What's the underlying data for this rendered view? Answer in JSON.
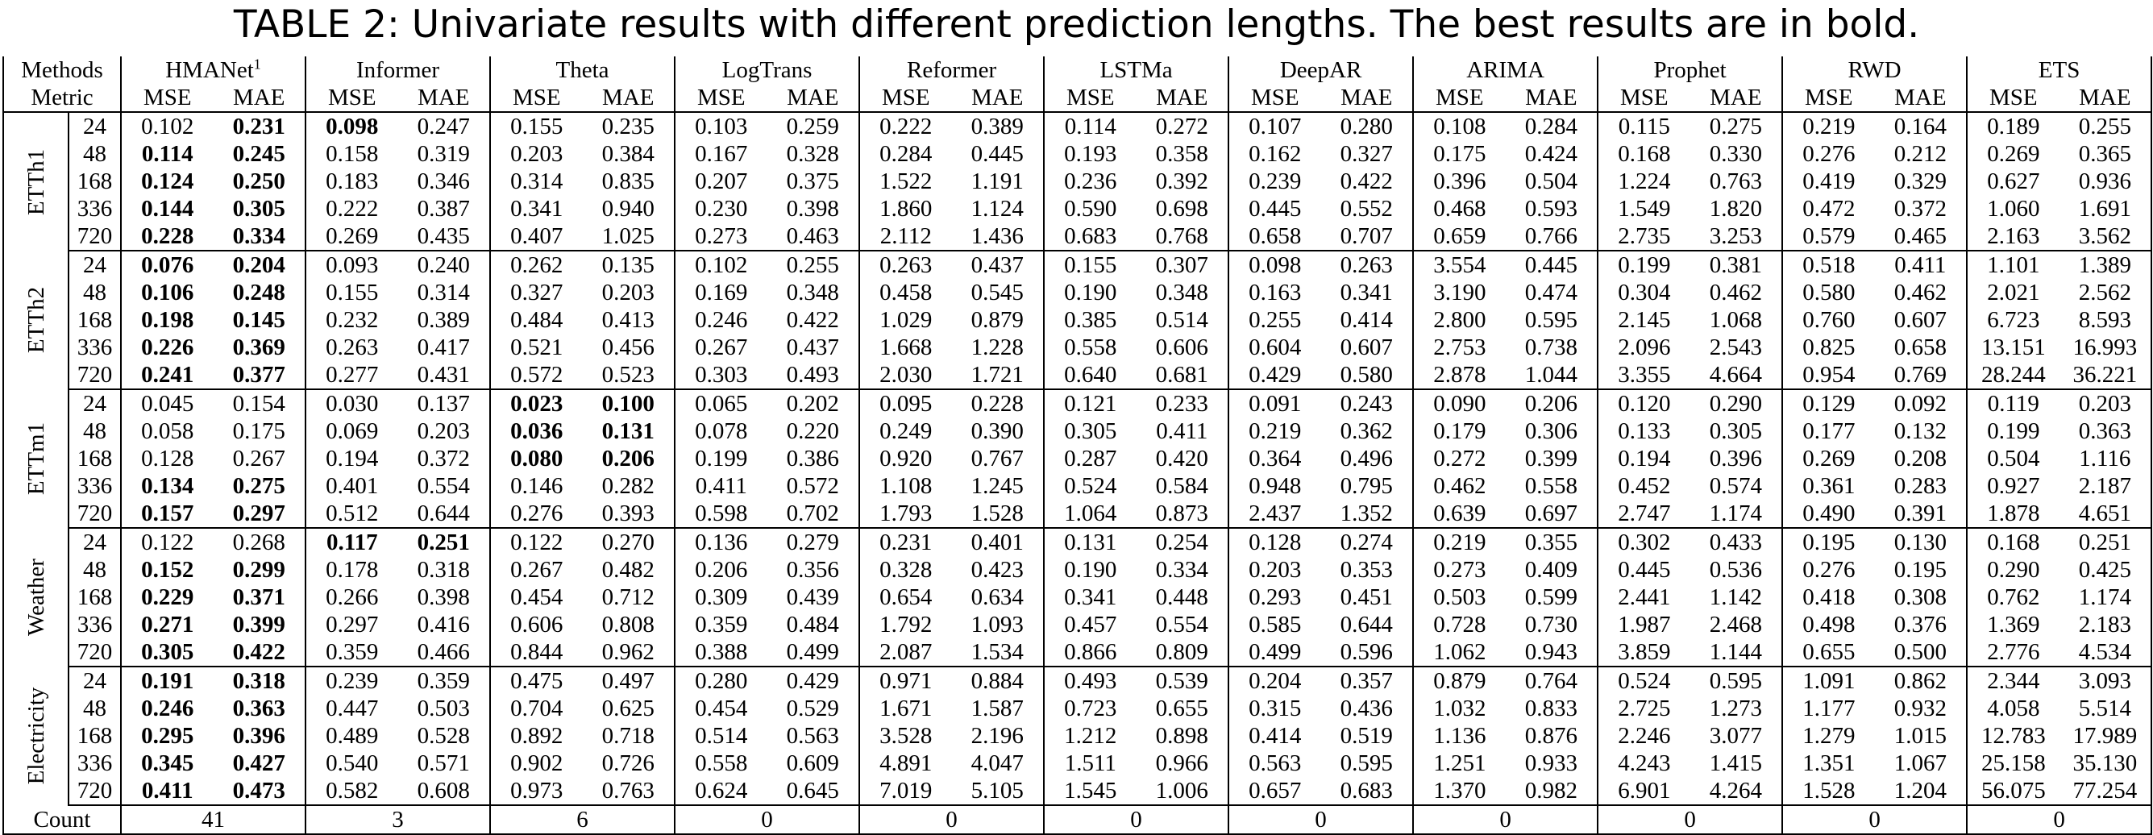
{
  "caption": "TABLE 2: Univariate results with different prediction lengths. The best results are in bold.",
  "header": {
    "methods_label": "Methods",
    "metric_label": "Metric",
    "metric_names": [
      "MSE",
      "MAE"
    ],
    "methods": [
      {
        "name": "HMANet",
        "sup": "1"
      },
      {
        "name": "Informer",
        "sup": ""
      },
      {
        "name": "Theta",
        "sup": ""
      },
      {
        "name": "LogTrans",
        "sup": ""
      },
      {
        "name": "Reformer",
        "sup": ""
      },
      {
        "name": "LSTMa",
        "sup": ""
      },
      {
        "name": "DeepAR",
        "sup": ""
      },
      {
        "name": "ARIMA",
        "sup": ""
      },
      {
        "name": "Prophet",
        "sup": ""
      },
      {
        "name": "RWD",
        "sup": ""
      },
      {
        "name": "ETS",
        "sup": ""
      }
    ]
  },
  "groups": [
    {
      "dataset": "ETTh1",
      "rows": [
        {
          "len": "24",
          "values": [
            "0.102",
            "0.231",
            "0.098",
            "0.247",
            "0.155",
            "0.235",
            "0.103",
            "0.259",
            "0.222",
            "0.389",
            "0.114",
            "0.272",
            "0.107",
            "0.280",
            "0.108",
            "0.284",
            "0.115",
            "0.275",
            "0.219",
            "0.164",
            "0.189",
            "0.255"
          ],
          "bold": [
            1,
            2
          ]
        },
        {
          "len": "48",
          "values": [
            "0.114",
            "0.245",
            "0.158",
            "0.319",
            "0.203",
            "0.384",
            "0.167",
            "0.328",
            "0.284",
            "0.445",
            "0.193",
            "0.358",
            "0.162",
            "0.327",
            "0.175",
            "0.424",
            "0.168",
            "0.330",
            "0.276",
            "0.212",
            "0.269",
            "0.365"
          ],
          "bold": [
            0,
            1
          ]
        },
        {
          "len": "168",
          "values": [
            "0.124",
            "0.250",
            "0.183",
            "0.346",
            "0.314",
            "0.835",
            "0.207",
            "0.375",
            "1.522",
            "1.191",
            "0.236",
            "0.392",
            "0.239",
            "0.422",
            "0.396",
            "0.504",
            "1.224",
            "0.763",
            "0.419",
            "0.329",
            "0.627",
            "0.936"
          ],
          "bold": [
            0,
            1
          ]
        },
        {
          "len": "336",
          "values": [
            "0.144",
            "0.305",
            "0.222",
            "0.387",
            "0.341",
            "0.940",
            "0.230",
            "0.398",
            "1.860",
            "1.124",
            "0.590",
            "0.698",
            "0.445",
            "0.552",
            "0.468",
            "0.593",
            "1.549",
            "1.820",
            "0.472",
            "0.372",
            "1.060",
            "1.691"
          ],
          "bold": [
            0,
            1
          ]
        },
        {
          "len": "720",
          "values": [
            "0.228",
            "0.334",
            "0.269",
            "0.435",
            "0.407",
            "1.025",
            "0.273",
            "0.463",
            "2.112",
            "1.436",
            "0.683",
            "0.768",
            "0.658",
            "0.707",
            "0.659",
            "0.766",
            "2.735",
            "3.253",
            "0.579",
            "0.465",
            "2.163",
            "3.562"
          ],
          "bold": [
            0,
            1
          ]
        }
      ]
    },
    {
      "dataset": "ETTh2",
      "rows": [
        {
          "len": "24",
          "values": [
            "0.076",
            "0.204",
            "0.093",
            "0.240",
            "0.262",
            "0.135",
            "0.102",
            "0.255",
            "0.263",
            "0.437",
            "0.155",
            "0.307",
            "0.098",
            "0.263",
            "3.554",
            "0.445",
            "0.199",
            "0.381",
            "0.518",
            "0.411",
            "1.101",
            "1.389"
          ],
          "bold": [
            0,
            1
          ]
        },
        {
          "len": "48",
          "values": [
            "0.106",
            "0.248",
            "0.155",
            "0.314",
            "0.327",
            "0.203",
            "0.169",
            "0.348",
            "0.458",
            "0.545",
            "0.190",
            "0.348",
            "0.163",
            "0.341",
            "3.190",
            "0.474",
            "0.304",
            "0.462",
            "0.580",
            "0.462",
            "2.021",
            "2.562"
          ],
          "bold": [
            0,
            1
          ]
        },
        {
          "len": "168",
          "values": [
            "0.198",
            "0.145",
            "0.232",
            "0.389",
            "0.484",
            "0.413",
            "0.246",
            "0.422",
            "1.029",
            "0.879",
            "0.385",
            "0.514",
            "0.255",
            "0.414",
            "2.800",
            "0.595",
            "2.145",
            "1.068",
            "0.760",
            "0.607",
            "6.723",
            "8.593"
          ],
          "bold": [
            0,
            1
          ]
        },
        {
          "len": "336",
          "values": [
            "0.226",
            "0.369",
            "0.263",
            "0.417",
            "0.521",
            "0.456",
            "0.267",
            "0.437",
            "1.668",
            "1.228",
            "0.558",
            "0.606",
            "0.604",
            "0.607",
            "2.753",
            "0.738",
            "2.096",
            "2.543",
            "0.825",
            "0.658",
            "13.151",
            "16.993"
          ],
          "bold": [
            0,
            1
          ]
        },
        {
          "len": "720",
          "values": [
            "0.241",
            "0.377",
            "0.277",
            "0.431",
            "0.572",
            "0.523",
            "0.303",
            "0.493",
            "2.030",
            "1.721",
            "0.640",
            "0.681",
            "0.429",
            "0.580",
            "2.878",
            "1.044",
            "3.355",
            "4.664",
            "0.954",
            "0.769",
            "28.244",
            "36.221"
          ],
          "bold": [
            0,
            1
          ]
        }
      ]
    },
    {
      "dataset": "ETTm1",
      "rows": [
        {
          "len": "24",
          "values": [
            "0.045",
            "0.154",
            "0.030",
            "0.137",
            "0.023",
            "0.100",
            "0.065",
            "0.202",
            "0.095",
            "0.228",
            "0.121",
            "0.233",
            "0.091",
            "0.243",
            "0.090",
            "0.206",
            "0.120",
            "0.290",
            "0.129",
            "0.092",
            "0.119",
            "0.203"
          ],
          "bold": [
            4,
            5
          ]
        },
        {
          "len": "48",
          "values": [
            "0.058",
            "0.175",
            "0.069",
            "0.203",
            "0.036",
            "0.131",
            "0.078",
            "0.220",
            "0.249",
            "0.390",
            "0.305",
            "0.411",
            "0.219",
            "0.362",
            "0.179",
            "0.306",
            "0.133",
            "0.305",
            "0.177",
            "0.132",
            "0.199",
            "0.363"
          ],
          "bold": [
            4,
            5
          ]
        },
        {
          "len": "168",
          "values": [
            "0.128",
            "0.267",
            "0.194",
            "0.372",
            "0.080",
            "0.206",
            "0.199",
            "0.386",
            "0.920",
            "0.767",
            "0.287",
            "0.420",
            "0.364",
            "0.496",
            "0.272",
            "0.399",
            "0.194",
            "0.396",
            "0.269",
            "0.208",
            "0.504",
            "1.116"
          ],
          "bold": [
            4,
            5
          ]
        },
        {
          "len": "336",
          "values": [
            "0.134",
            "0.275",
            "0.401",
            "0.554",
            "0.146",
            "0.282",
            "0.411",
            "0.572",
            "1.108",
            "1.245",
            "0.524",
            "0.584",
            "0.948",
            "0.795",
            "0.462",
            "0.558",
            "0.452",
            "0.574",
            "0.361",
            "0.283",
            "0.927",
            "2.187"
          ],
          "bold": [
            0,
            1
          ]
        },
        {
          "len": "720",
          "values": [
            "0.157",
            "0.297",
            "0.512",
            "0.644",
            "0.276",
            "0.393",
            "0.598",
            "0.702",
            "1.793",
            "1.528",
            "1.064",
            "0.873",
            "2.437",
            "1.352",
            "0.639",
            "0.697",
            "2.747",
            "1.174",
            "0.490",
            "0.391",
            "1.878",
            "4.651"
          ],
          "bold": [
            0,
            1
          ]
        }
      ]
    },
    {
      "dataset": "Weather",
      "rows": [
        {
          "len": "24",
          "values": [
            "0.122",
            "0.268",
            "0.117",
            "0.251",
            "0.122",
            "0.270",
            "0.136",
            "0.279",
            "0.231",
            "0.401",
            "0.131",
            "0.254",
            "0.128",
            "0.274",
            "0.219",
            "0.355",
            "0.302",
            "0.433",
            "0.195",
            "0.130",
            "0.168",
            "0.251"
          ],
          "bold": [
            2,
            3
          ]
        },
        {
          "len": "48",
          "values": [
            "0.152",
            "0.299",
            "0.178",
            "0.318",
            "0.267",
            "0.482",
            "0.206",
            "0.356",
            "0.328",
            "0.423",
            "0.190",
            "0.334",
            "0.203",
            "0.353",
            "0.273",
            "0.409",
            "0.445",
            "0.536",
            "0.276",
            "0.195",
            "0.290",
            "0.425"
          ],
          "bold": [
            0,
            1
          ]
        },
        {
          "len": "168",
          "values": [
            "0.229",
            "0.371",
            "0.266",
            "0.398",
            "0.454",
            "0.712",
            "0.309",
            "0.439",
            "0.654",
            "0.634",
            "0.341",
            "0.448",
            "0.293",
            "0.451",
            "0.503",
            "0.599",
            "2.441",
            "1.142",
            "0.418",
            "0.308",
            "0.762",
            "1.174"
          ],
          "bold": [
            0,
            1
          ]
        },
        {
          "len": "336",
          "values": [
            "0.271",
            "0.399",
            "0.297",
            "0.416",
            "0.606",
            "0.808",
            "0.359",
            "0.484",
            "1.792",
            "1.093",
            "0.457",
            "0.554",
            "0.585",
            "0.644",
            "0.728",
            "0.730",
            "1.987",
            "2.468",
            "0.498",
            "0.376",
            "1.369",
            "2.183"
          ],
          "bold": [
            0,
            1
          ]
        },
        {
          "len": "720",
          "values": [
            "0.305",
            "0.422",
            "0.359",
            "0.466",
            "0.844",
            "0.962",
            "0.388",
            "0.499",
            "2.087",
            "1.534",
            "0.866",
            "0.809",
            "0.499",
            "0.596",
            "1.062",
            "0.943",
            "3.859",
            "1.144",
            "0.655",
            "0.500",
            "2.776",
            "4.534"
          ],
          "bold": [
            0,
            1
          ]
        }
      ]
    },
    {
      "dataset": "Electricity",
      "rows": [
        {
          "len": "24",
          "values": [
            "0.191",
            "0.318",
            "0.239",
            "0.359",
            "0.475",
            "0.497",
            "0.280",
            "0.429",
            "0.971",
            "0.884",
            "0.493",
            "0.539",
            "0.204",
            "0.357",
            "0.879",
            "0.764",
            "0.524",
            "0.595",
            "1.091",
            "0.862",
            "2.344",
            "3.093"
          ],
          "bold": [
            0,
            1
          ]
        },
        {
          "len": "48",
          "values": [
            "0.246",
            "0.363",
            "0.447",
            "0.503",
            "0.704",
            "0.625",
            "0.454",
            "0.529",
            "1.671",
            "1.587",
            "0.723",
            "0.655",
            "0.315",
            "0.436",
            "1.032",
            "0.833",
            "2.725",
            "1.273",
            "1.177",
            "0.932",
            "4.058",
            "5.514"
          ],
          "bold": [
            0,
            1
          ]
        },
        {
          "len": "168",
          "values": [
            "0.295",
            "0.396",
            "0.489",
            "0.528",
            "0.892",
            "0.718",
            "0.514",
            "0.563",
            "3.528",
            "2.196",
            "1.212",
            "0.898",
            "0.414",
            "0.519",
            "1.136",
            "0.876",
            "2.246",
            "3.077",
            "1.279",
            "1.015",
            "12.783",
            "17.989"
          ],
          "bold": [
            0,
            1
          ]
        },
        {
          "len": "336",
          "values": [
            "0.345",
            "0.427",
            "0.540",
            "0.571",
            "0.902",
            "0.726",
            "0.558",
            "0.609",
            "4.891",
            "4.047",
            "1.511",
            "0.966",
            "0.563",
            "0.595",
            "1.251",
            "0.933",
            "4.243",
            "1.415",
            "1.351",
            "1.067",
            "25.158",
            "35.130"
          ],
          "bold": [
            0,
            1
          ]
        },
        {
          "len": "720",
          "values": [
            "0.411",
            "0.473",
            "0.582",
            "0.608",
            "0.973",
            "0.763",
            "0.624",
            "0.645",
            "7.019",
            "5.105",
            "1.545",
            "1.006",
            "0.657",
            "0.683",
            "1.370",
            "0.982",
            "6.901",
            "4.264",
            "1.528",
            "1.204",
            "56.075",
            "77.254"
          ],
          "bold": [
            0,
            1
          ]
        }
      ]
    }
  ],
  "count": {
    "label": "Count",
    "values": [
      "41",
      "3",
      "6",
      "0",
      "0",
      "0",
      "0",
      "0",
      "0",
      "0",
      "0"
    ]
  }
}
